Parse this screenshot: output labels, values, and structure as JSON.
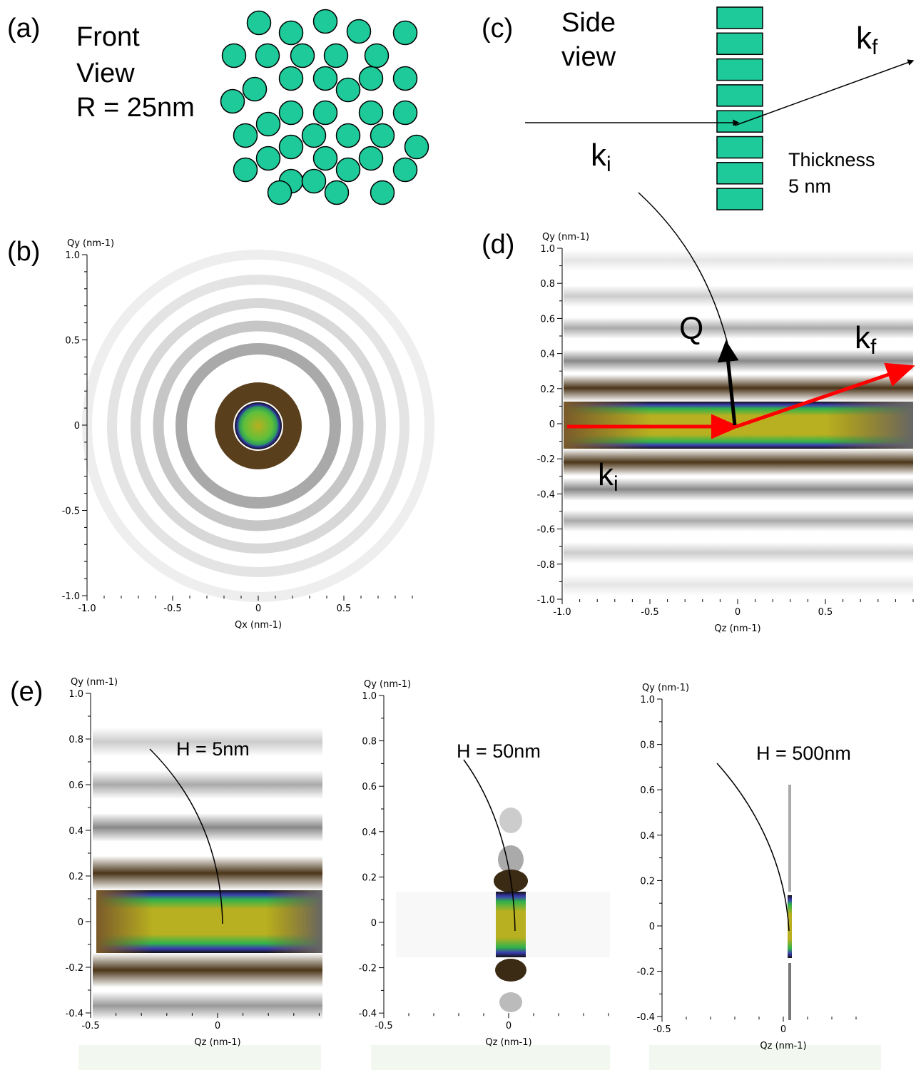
{
  "panels": {
    "a": {
      "label": "(a)",
      "lines": [
        "Front",
        "View",
        "R = 25nm"
      ]
    },
    "b": {
      "label": "(b)",
      "y_title": "Qy (nm-1)",
      "x_title": "Qx (nm-1)",
      "yticks": [
        "1.0",
        "0.5",
        "0",
        "-0.5",
        "-1.0"
      ],
      "xticks": [
        "-1.0",
        "-0.5",
        "0",
        "0.5"
      ]
    },
    "c": {
      "label": "(c)",
      "lines": [
        "Side",
        "view"
      ],
      "k_f": "k",
      "k_f_sub": "f",
      "k_i": "k",
      "k_i_sub": "i",
      "thickness": [
        "Thickness",
        "5 nm"
      ]
    },
    "d": {
      "label": "(d)",
      "y_title": "Qy (nm-1)",
      "x_title": "Qz (nm-1)",
      "yticks": [
        "1.0",
        "0.8",
        "0.6",
        "0.4",
        "0.2",
        "0",
        "-0.2",
        "-0.4",
        "-0.6",
        "-0.8",
        "-1.0"
      ],
      "xticks": [
        "-1.0",
        "-0.5",
        "0",
        "0.5"
      ],
      "q": "Q",
      "k_f": "k",
      "k_f_sub": "f",
      "k_i": "k",
      "k_i_sub": "i"
    },
    "e": {
      "label": "(e)",
      "plots": [
        {
          "annotation": "H = 5nm",
          "y_title": "Qy (nm-1)",
          "x_title": "Qz (nm-1)",
          "yticks": [
            "1.0",
            "0.8",
            "0.6",
            "0.4",
            "0.2",
            "0",
            "-0.2",
            "-0.4"
          ],
          "xticks": [
            "-0.5",
            "0"
          ]
        },
        {
          "annotation": "H = 50nm",
          "y_title": "Qy (nm-1)",
          "x_title": "Qz (nm-1)",
          "yticks": [
            "1.0",
            "0.8",
            "0.6",
            "0.4",
            "0.2",
            "0",
            "-0.2",
            "-0.4"
          ],
          "xticks": [
            "-0.5",
            "0"
          ]
        },
        {
          "annotation": "H = 500nm",
          "y_title": "Qy (nm-1)",
          "x_title": "Qz (nm-1)",
          "yticks": [
            "1.0",
            "0.8",
            "0.6",
            "0.4",
            "0.2",
            "0",
            "-0.2",
            "-0.4"
          ],
          "xticks": [
            "-0.5",
            "0"
          ]
        }
      ]
    }
  }
}
